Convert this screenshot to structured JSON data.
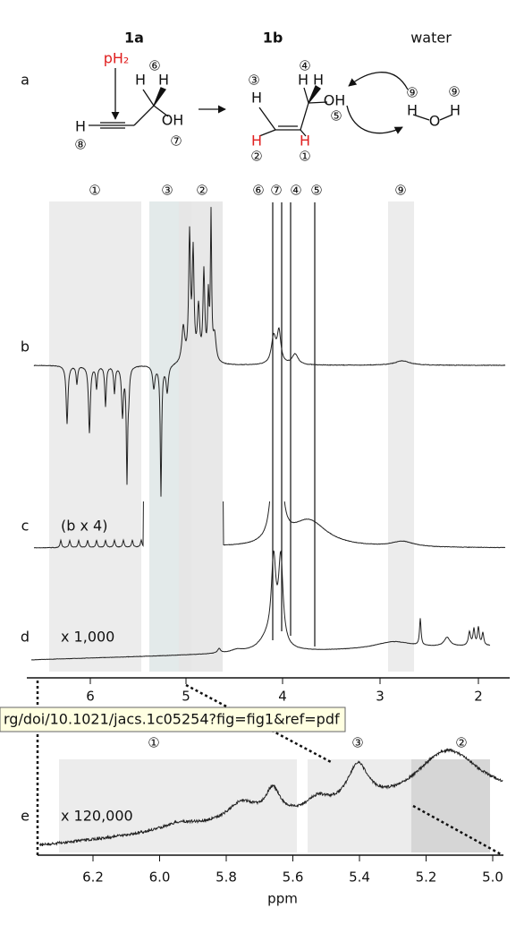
{
  "scheme": {
    "label": "a",
    "reactant": "1a",
    "product": "1b",
    "solvent": "water",
    "parahydrogen": "pH₂",
    "reactant_atoms": [
      "H",
      "H",
      "H",
      "OH"
    ],
    "reactant_markers": [
      "⑥",
      "⑧",
      "⑦"
    ],
    "product_atoms": [
      "H",
      "H",
      "H",
      "OH",
      "H",
      "H"
    ],
    "product_markers": [
      "③",
      "④",
      "⑤",
      "②",
      "①"
    ],
    "water_atoms": [
      "H",
      "O",
      "H"
    ],
    "water_markers": [
      "⑨",
      "⑨"
    ]
  },
  "spectra": {
    "region_markers": [
      "①",
      "③",
      "②",
      "⑥",
      "⑦",
      "④",
      "⑤",
      "⑨"
    ],
    "traces": [
      {
        "label": "b"
      },
      {
        "label": "c",
        "note": "(b x 4)"
      },
      {
        "label": "d",
        "note": "x 1,000"
      }
    ],
    "ticks": [
      "6",
      "5",
      "4",
      "3",
      "2"
    ]
  },
  "tooltip": {
    "url": "rg/doi/10.1021/jacs.1c05254?fig=fig1&ref=pdf"
  },
  "inset": {
    "label": "e",
    "note": "x 120,000",
    "region_markers": [
      "①",
      "③",
      "②"
    ],
    "ticks": [
      "6.2",
      "6.0",
      "5.8",
      "5.6",
      "5.4",
      "5.2",
      "5.0"
    ],
    "axis_title": "ppm"
  }
}
